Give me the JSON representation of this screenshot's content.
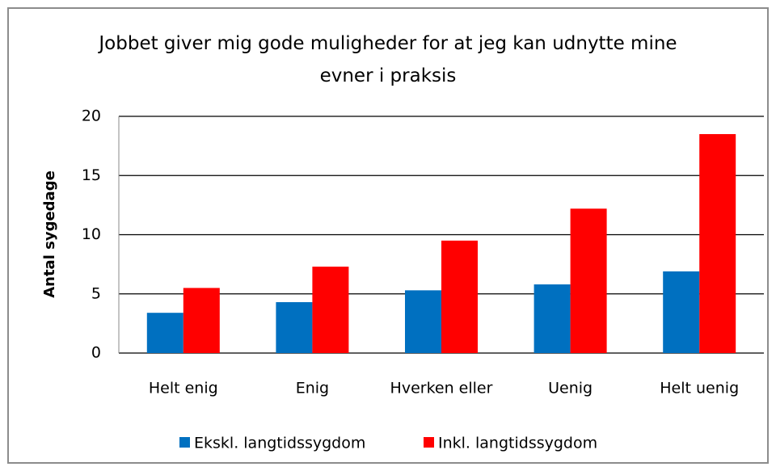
{
  "chart_data": {
    "type": "bar",
    "title": "Jobbet giver mig gode muligheder for at jeg kan udnytte mine evner i praksis",
    "y_label": "Antal sygedage",
    "categories": [
      "Helt enig",
      "Enig",
      "Hverken eller",
      "Uenig",
      "Helt uenig"
    ],
    "series": [
      {
        "name": "Ekskl. langtidssygdom",
        "color": "#0070c0",
        "values": [
          3.4,
          4.3,
          5.3,
          5.8,
          6.9
        ]
      },
      {
        "name": "Inkl. langtidssygdom",
        "color": "#ff0000",
        "values": [
          5.5,
          7.3,
          9.5,
          12.2,
          18.5
        ]
      }
    ],
    "ylim": [
      0,
      20
    ],
    "yticks": [
      0,
      5,
      10,
      15,
      20
    ],
    "grid": true,
    "legend": "bottom"
  }
}
